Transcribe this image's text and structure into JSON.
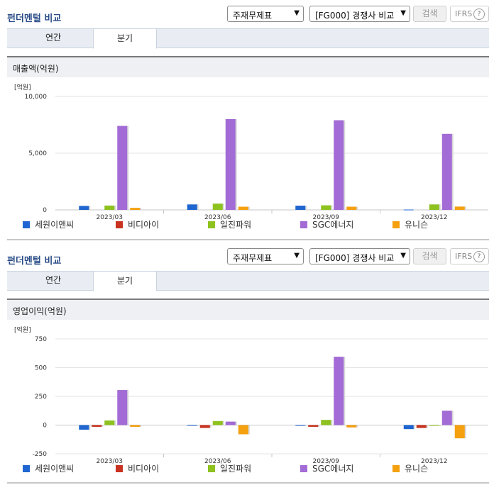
{
  "sections": [
    {
      "title": "펀더멘털 비교",
      "select1": "주재무제표",
      "select2": "[FG000] 경쟁사 비교",
      "search_label": "검색",
      "ifrs_label": "IFRS",
      "ifrs_help": "?",
      "tabs": [
        {
          "label": "연간"
        },
        {
          "label": "분기"
        }
      ],
      "active_tab": "분기",
      "subtitle": "매출액(억원)"
    },
    {
      "title": "펀더멘털 비교",
      "select1": "주재무제표",
      "select2": "[FG000] 경쟁사 비교",
      "search_label": "검색",
      "ifrs_label": "IFRS",
      "ifrs_help": "?",
      "tabs": [
        {
          "label": "연간"
        },
        {
          "label": "분기"
        }
      ],
      "active_tab": "분기",
      "subtitle": "영업이익(억원)"
    }
  ],
  "chart_data": [
    {
      "type": "bar",
      "title": "매출액(억원)",
      "unit_label": "[억원]",
      "categories": [
        "2023/03",
        "2023/06",
        "2023/09",
        "2023/12"
      ],
      "ylim": [
        0,
        10000
      ],
      "yticks": [
        0,
        5000,
        10000
      ],
      "ytick_labels": [
        "0",
        "5,000",
        "10,000"
      ],
      "grid": true,
      "legend_position": "bottom",
      "series": [
        {
          "name": "세원이앤씨",
          "color": "#1f66d1",
          "values": [
            350,
            480,
            370,
            30
          ]
        },
        {
          "name": "비디아이",
          "color": "#c8321e",
          "values": [
            null,
            null,
            null,
            null
          ]
        },
        {
          "name": "일진파워",
          "color": "#8dc21f",
          "values": [
            380,
            550,
            400,
            480
          ]
        },
        {
          "name": "SGC에너지",
          "color": "#a36bd6",
          "values": [
            7400,
            8000,
            7900,
            6700
          ]
        },
        {
          "name": "유니슨",
          "color": "#f5a00f",
          "values": [
            180,
            280,
            280,
            290
          ]
        }
      ]
    },
    {
      "type": "bar",
      "title": "영업이익(억원)",
      "unit_label": "[억원]",
      "categories": [
        "2023/03",
        "2023/06",
        "2023/09",
        "2023/12"
      ],
      "ylim": [
        -250,
        750
      ],
      "yticks": [
        -250,
        0,
        250,
        500,
        750
      ],
      "ytick_labels": [
        "-250",
        "0",
        "250",
        "500",
        "750"
      ],
      "grid": true,
      "legend_position": "bottom",
      "series": [
        {
          "name": "세원이앤씨",
          "color": "#1f66d1",
          "values": [
            -40,
            0,
            0,
            -35
          ]
        },
        {
          "name": "비디아이",
          "color": "#c8321e",
          "values": [
            -15,
            -25,
            -15,
            -25
          ]
        },
        {
          "name": "일진파워",
          "color": "#8dc21f",
          "values": [
            40,
            35,
            45,
            0
          ]
        },
        {
          "name": "SGC에너지",
          "color": "#a36bd6",
          "values": [
            305,
            30,
            595,
            125
          ]
        },
        {
          "name": "유니슨",
          "color": "#f5a00f",
          "values": [
            -15,
            -80,
            -20,
            -115
          ]
        }
      ]
    }
  ]
}
